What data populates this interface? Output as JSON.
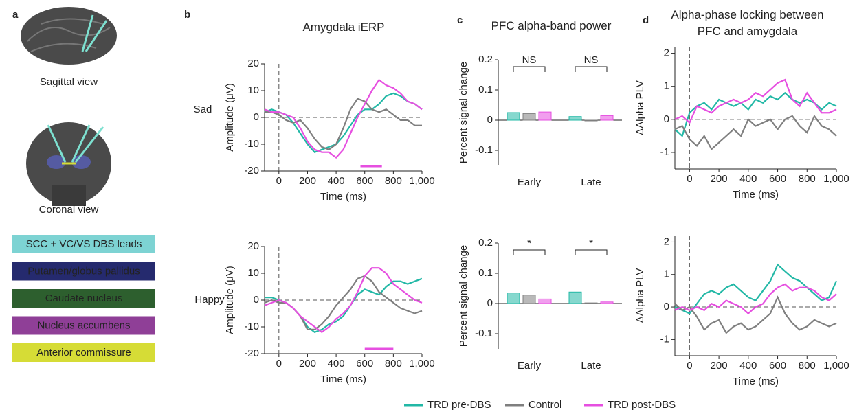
{
  "panel_labels": [
    "a",
    "b",
    "c",
    "d"
  ],
  "brain_views": [
    "Sagittal view",
    "Coronal view"
  ],
  "regions": [
    {
      "name": "SCC + VC/VS DBS leads",
      "color": "#7dd3d3"
    },
    {
      "name": "Putamen/globus pallidus",
      "color": "#252a6e"
    },
    {
      "name": "Caudate nucleus",
      "color": "#2d5f2e"
    },
    {
      "name": "Nucleus accumbens",
      "color": "#8f3f97"
    },
    {
      "name": "Anterior commissure",
      "color": "#d6dc36"
    }
  ],
  "row_labels": [
    "Sad",
    "Happy"
  ],
  "chart_data": [
    {
      "type": "line",
      "title": "Amygdala iERP",
      "x_label": "Time (ms)",
      "y_label": "Amplitude (μV)",
      "xlim": [
        -100,
        1000
      ],
      "xticks": [
        0,
        200,
        400,
        600,
        800,
        {
          "value": 1000,
          "label": "1,000"
        }
      ],
      "ylim": [
        -20,
        20
      ],
      "yticks": [
        -20,
        -10,
        0,
        10,
        20
      ],
      "x": [
        -100,
        -50,
        0,
        50,
        100,
        150,
        200,
        250,
        300,
        350,
        400,
        450,
        500,
        550,
        600,
        650,
        700,
        750,
        800,
        850,
        900,
        950,
        1000
      ],
      "series": [
        {
          "name": "TRD pre-DBS",
          "color": "#22b8a6",
          "values": [
            2,
            3,
            2,
            1,
            -2,
            -6,
            -10,
            -13,
            -12,
            -11,
            -10,
            -7,
            -3,
            1,
            3,
            3,
            5,
            8,
            9,
            8,
            6,
            5,
            3
          ]
        },
        {
          "name": "Control",
          "color": "#7f7f7f",
          "values": [
            2,
            2,
            1,
            -1,
            -2,
            -1,
            -4,
            -8,
            -11,
            -12,
            -10,
            -4,
            3,
            7,
            6,
            3,
            2,
            3,
            1,
            -1,
            -1,
            -3,
            -3
          ]
        },
        {
          "name": "TRD post-DBS",
          "color": "#e64fe0",
          "values": [
            3,
            2,
            2,
            1,
            0,
            -4,
            -9,
            -12,
            -13,
            -13,
            -15,
            -12,
            -6,
            0,
            5,
            10,
            14,
            12,
            11,
            9,
            6,
            5,
            3
          ]
        }
      ],
      "sig_bar": [
        570,
        720
      ]
    },
    {
      "type": "line",
      "x_label": "Time (ms)",
      "y_label": "Amplitude (μV)",
      "xlim": [
        -100,
        1000
      ],
      "xticks": [
        0,
        200,
        400,
        600,
        800,
        {
          "value": 1000,
          "label": "1,000"
        }
      ],
      "ylim": [
        -20,
        20
      ],
      "yticks": [
        -20,
        -10,
        0,
        10,
        20
      ],
      "x": [
        -100,
        -50,
        0,
        50,
        100,
        150,
        200,
        250,
        300,
        350,
        400,
        450,
        500,
        550,
        600,
        650,
        700,
        750,
        800,
        850,
        900,
        950,
        1000
      ],
      "series": [
        {
          "name": "TRD pre-DBS",
          "color": "#22b8a6",
          "values": [
            1,
            1,
            0,
            -1,
            -3,
            -6,
            -10,
            -12,
            -11,
            -9,
            -8,
            -6,
            -2,
            2,
            4,
            3,
            2,
            5,
            7,
            7,
            6,
            7,
            8
          ]
        },
        {
          "name": "Control",
          "color": "#7f7f7f",
          "values": [
            -1,
            0,
            -1,
            -1,
            -3,
            -6,
            -11,
            -11,
            -9,
            -6,
            -2,
            1,
            4,
            8,
            9,
            7,
            3,
            1,
            -1,
            -3,
            -4,
            -5,
            -4
          ]
        },
        {
          "name": "TRD post-DBS",
          "color": "#e64fe0",
          "values": [
            -2,
            -1,
            0,
            -1,
            -3,
            -6,
            -8,
            -10,
            -12,
            -10,
            -7,
            -5,
            -2,
            3,
            9,
            12,
            12,
            10,
            6,
            4,
            2,
            0,
            -1
          ]
        }
      ],
      "sig_bar": [
        600,
        800
      ]
    },
    {
      "type": "bar",
      "title": "PFC alpha-band power",
      "y_label": "Percent signal change",
      "categories": [
        "Early",
        "Late"
      ],
      "ylim": [
        -0.15,
        0.2
      ],
      "yticks": [
        -0.1,
        0,
        0.1,
        0.2
      ],
      "series": [
        {
          "name": "TRD pre-DBS",
          "color": "#22b8a6",
          "values": [
            0.025,
            0.012
          ]
        },
        {
          "name": "Control",
          "color": "#7f7f7f",
          "values": [
            0.022,
            -0.002
          ]
        },
        {
          "name": "TRD post-DBS",
          "color": "#e64fe0",
          "values": [
            0.027,
            0.015
          ]
        }
      ],
      "annotations": [
        "NS",
        "NS"
      ]
    },
    {
      "type": "bar",
      "y_label": "Percent signal change",
      "categories": [
        "Early",
        "Late"
      ],
      "ylim": [
        -0.15,
        0.2
      ],
      "yticks": [
        -0.1,
        0,
        0.1,
        0.2
      ],
      "series": [
        {
          "name": "TRD pre-DBS",
          "color": "#22b8a6",
          "values": [
            0.035,
            0.038
          ]
        },
        {
          "name": "Control",
          "color": "#7f7f7f",
          "values": [
            0.028,
            0.002
          ]
        },
        {
          "name": "TRD post-DBS",
          "color": "#e64fe0",
          "values": [
            0.015,
            0.005
          ]
        }
      ],
      "annotations": [
        "*",
        "*"
      ]
    },
    {
      "type": "line",
      "title": "Alpha-phase locking between PFC and amygdala",
      "x_label": "Time (ms)",
      "y_label": "ΔAlpha PLV",
      "xlim": [
        -100,
        1000
      ],
      "xticks": [
        0,
        200,
        400,
        600,
        800,
        {
          "value": 1000,
          "label": "1,000"
        }
      ],
      "ylim": [
        -1.5,
        2.2
      ],
      "yticks": [
        -1,
        0,
        1,
        2
      ],
      "x": [
        -100,
        -50,
        0,
        50,
        100,
        150,
        200,
        250,
        300,
        350,
        400,
        450,
        500,
        550,
        600,
        650,
        700,
        750,
        800,
        850,
        900,
        950,
        1000
      ],
      "series": [
        {
          "name": "TRD pre-DBS",
          "color": "#22b8a6",
          "values": [
            -0.3,
            -0.5,
            0.2,
            0.4,
            0.5,
            0.3,
            0.6,
            0.5,
            0.4,
            0.5,
            0.3,
            0.6,
            0.5,
            0.7,
            0.6,
            0.8,
            0.6,
            0.5,
            0.6,
            0.5,
            0.3,
            0.5,
            0.4
          ]
        },
        {
          "name": "Control",
          "color": "#7f7f7f",
          "values": [
            -0.3,
            -0.2,
            -0.6,
            -0.8,
            -0.5,
            -0.9,
            -0.7,
            -0.5,
            -0.3,
            -0.5,
            0,
            -0.2,
            -0.1,
            0,
            -0.3,
            0,
            0.1,
            -0.2,
            -0.4,
            0.1,
            -0.2,
            -0.3,
            -0.5
          ]
        },
        {
          "name": "TRD post-DBS",
          "color": "#e64fe0",
          "values": [
            0,
            0.1,
            -0.1,
            0.4,
            0.3,
            0.2,
            0.4,
            0.5,
            0.6,
            0.5,
            0.6,
            0.8,
            0.7,
            0.9,
            1.1,
            1.2,
            0.6,
            0.4,
            0.8,
            0.5,
            0.2,
            0.2,
            0.3
          ]
        }
      ]
    },
    {
      "type": "line",
      "x_label": "Time (ms)",
      "y_label": "ΔAlpha PLV",
      "xlim": [
        -100,
        1000
      ],
      "xticks": [
        0,
        200,
        400,
        600,
        800,
        {
          "value": 1000,
          "label": "1,000"
        }
      ],
      "ylim": [
        -1.5,
        2.2
      ],
      "yticks": [
        -1,
        0,
        1,
        2
      ],
      "x": [
        -100,
        -50,
        0,
        50,
        100,
        150,
        200,
        250,
        300,
        350,
        400,
        450,
        500,
        550,
        600,
        650,
        700,
        750,
        800,
        850,
        900,
        950,
        1000
      ],
      "series": [
        {
          "name": "TRD pre-DBS",
          "color": "#22b8a6",
          "values": [
            0,
            -0.1,
            -0.2,
            0.1,
            0.4,
            0.5,
            0.4,
            0.6,
            0.7,
            0.5,
            0.3,
            0.2,
            0.5,
            0.8,
            1.3,
            1.1,
            0.9,
            0.8,
            0.6,
            0.4,
            0.2,
            0.3,
            0.8
          ]
        },
        {
          "name": "Control",
          "color": "#7f7f7f",
          "values": [
            0.1,
            -0.1,
            0,
            -0.3,
            -0.7,
            -0.5,
            -0.4,
            -0.8,
            -0.6,
            -0.5,
            -0.7,
            -0.6,
            -0.4,
            -0.2,
            0.3,
            -0.2,
            -0.5,
            -0.7,
            -0.6,
            -0.4,
            -0.5,
            -0.6,
            -0.5
          ]
        },
        {
          "name": "TRD post-DBS",
          "color": "#e64fe0",
          "values": [
            -0.1,
            0,
            -0.1,
            0,
            -0.1,
            0.1,
            0,
            0.2,
            0.1,
            0,
            -0.2,
            0,
            0.1,
            0.4,
            0.6,
            0.7,
            0.5,
            0.6,
            0.6,
            0.5,
            0.3,
            0.2,
            0.4
          ]
        }
      ]
    }
  ]
}
